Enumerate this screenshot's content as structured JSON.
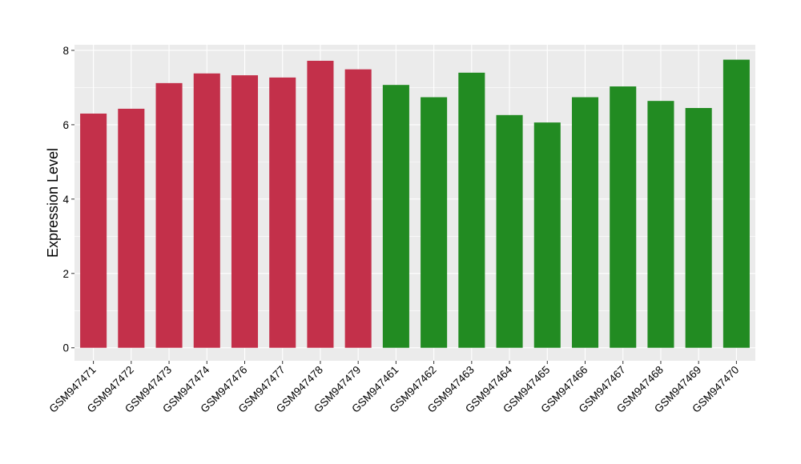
{
  "chart_data": {
    "type": "bar",
    "title": "",
    "xlabel": "",
    "ylabel": "Expression Level",
    "ylim": [
      -0.35,
      8.15
    ],
    "y_ticks": [
      0,
      2,
      4,
      6,
      8
    ],
    "y_tick_labels": [
      "0",
      "2",
      "4",
      "6",
      "8"
    ],
    "grid": true,
    "legend": "none",
    "categories": [
      "GSM947471",
      "GSM947472",
      "GSM947473",
      "GSM947474",
      "GSM947476",
      "GSM947477",
      "GSM947478",
      "GSM947479",
      "GSM947461",
      "GSM947462",
      "GSM947463",
      "GSM947464",
      "GSM947465",
      "GSM947466",
      "GSM947467",
      "GSM947468",
      "GSM947469",
      "GSM947470"
    ],
    "values": [
      6.3,
      6.43,
      7.12,
      7.38,
      7.33,
      7.27,
      7.72,
      7.49,
      7.07,
      6.74,
      7.4,
      6.26,
      6.06,
      6.74,
      7.03,
      6.64,
      6.45,
      7.75
    ],
    "bar_colors": [
      "#C3304A",
      "#C3304A",
      "#C3304A",
      "#C3304A",
      "#C3304A",
      "#C3304A",
      "#C3304A",
      "#C3304A",
      "#228B22",
      "#228B22",
      "#228B22",
      "#228B22",
      "#228B22",
      "#228B22",
      "#228B22",
      "#228B22",
      "#228B22",
      "#228B22"
    ],
    "panel_background": "#EBEBEB",
    "grid_color": "#FFFFFF"
  }
}
